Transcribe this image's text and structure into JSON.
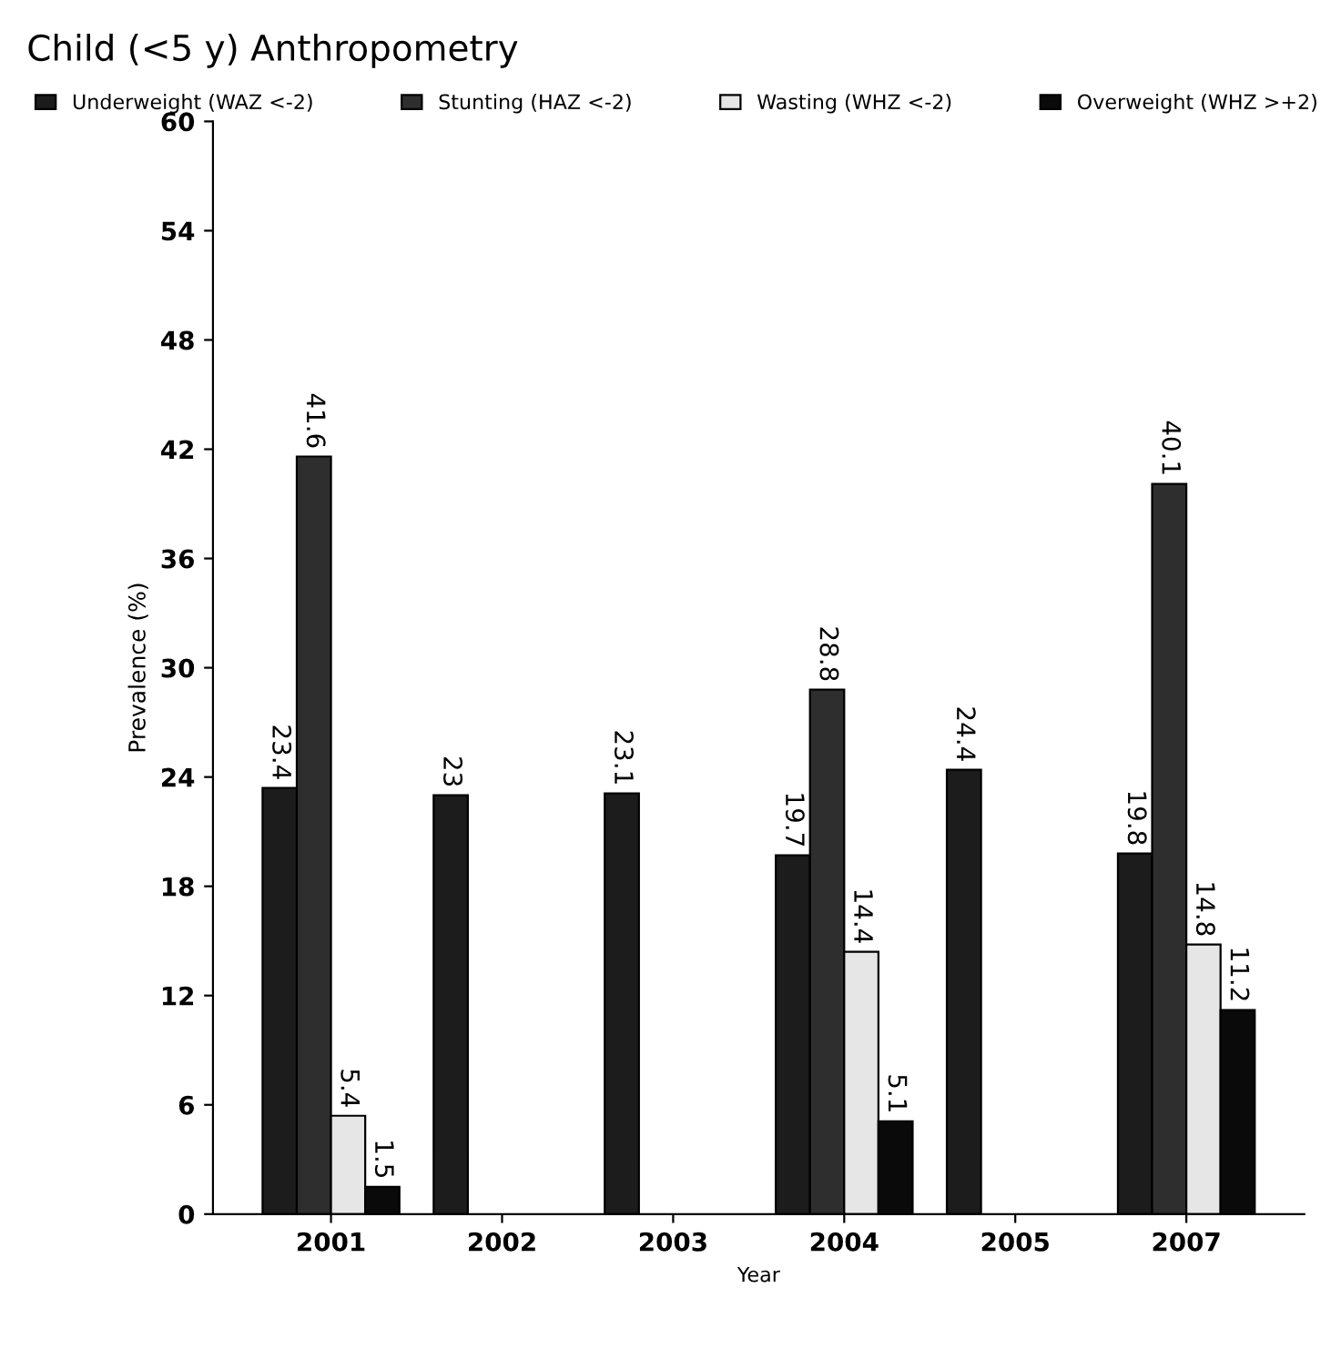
{
  "chart_data": {
    "type": "bar",
    "title": "Child (<5 y) Anthropometry",
    "xlabel": "Year",
    "ylabel": "Prevalence (%)",
    "categories": [
      "2001",
      "2002",
      "2003",
      "2004",
      "2005",
      "2007"
    ],
    "series": [
      {
        "name": "Underweight (WAZ <-2)",
        "color": "#1c1c1c",
        "values": [
          23.4,
          23,
          23.1,
          19.7,
          24.4,
          19.8
        ]
      },
      {
        "name": "Stunting (HAZ <-2)",
        "color": "#2e2e2e",
        "values": [
          41.6,
          null,
          null,
          28.8,
          null,
          40.1
        ]
      },
      {
        "name": "Wasting (WHZ <-2)",
        "color": "#e6e6e6",
        "values": [
          5.4,
          null,
          null,
          14.4,
          null,
          14.8
        ]
      },
      {
        "name": "Overweight (WHZ >+2)",
        "color": "#0a0a0a",
        "values": [
          1.5,
          null,
          null,
          5.1,
          null,
          11.2
        ]
      }
    ],
    "ylim": [
      0,
      60
    ],
    "yticks": [
      0,
      6,
      12,
      18,
      24,
      30,
      36,
      42,
      48,
      54,
      60
    ],
    "data_labels": true,
    "legend": "top",
    "grid": false
  }
}
